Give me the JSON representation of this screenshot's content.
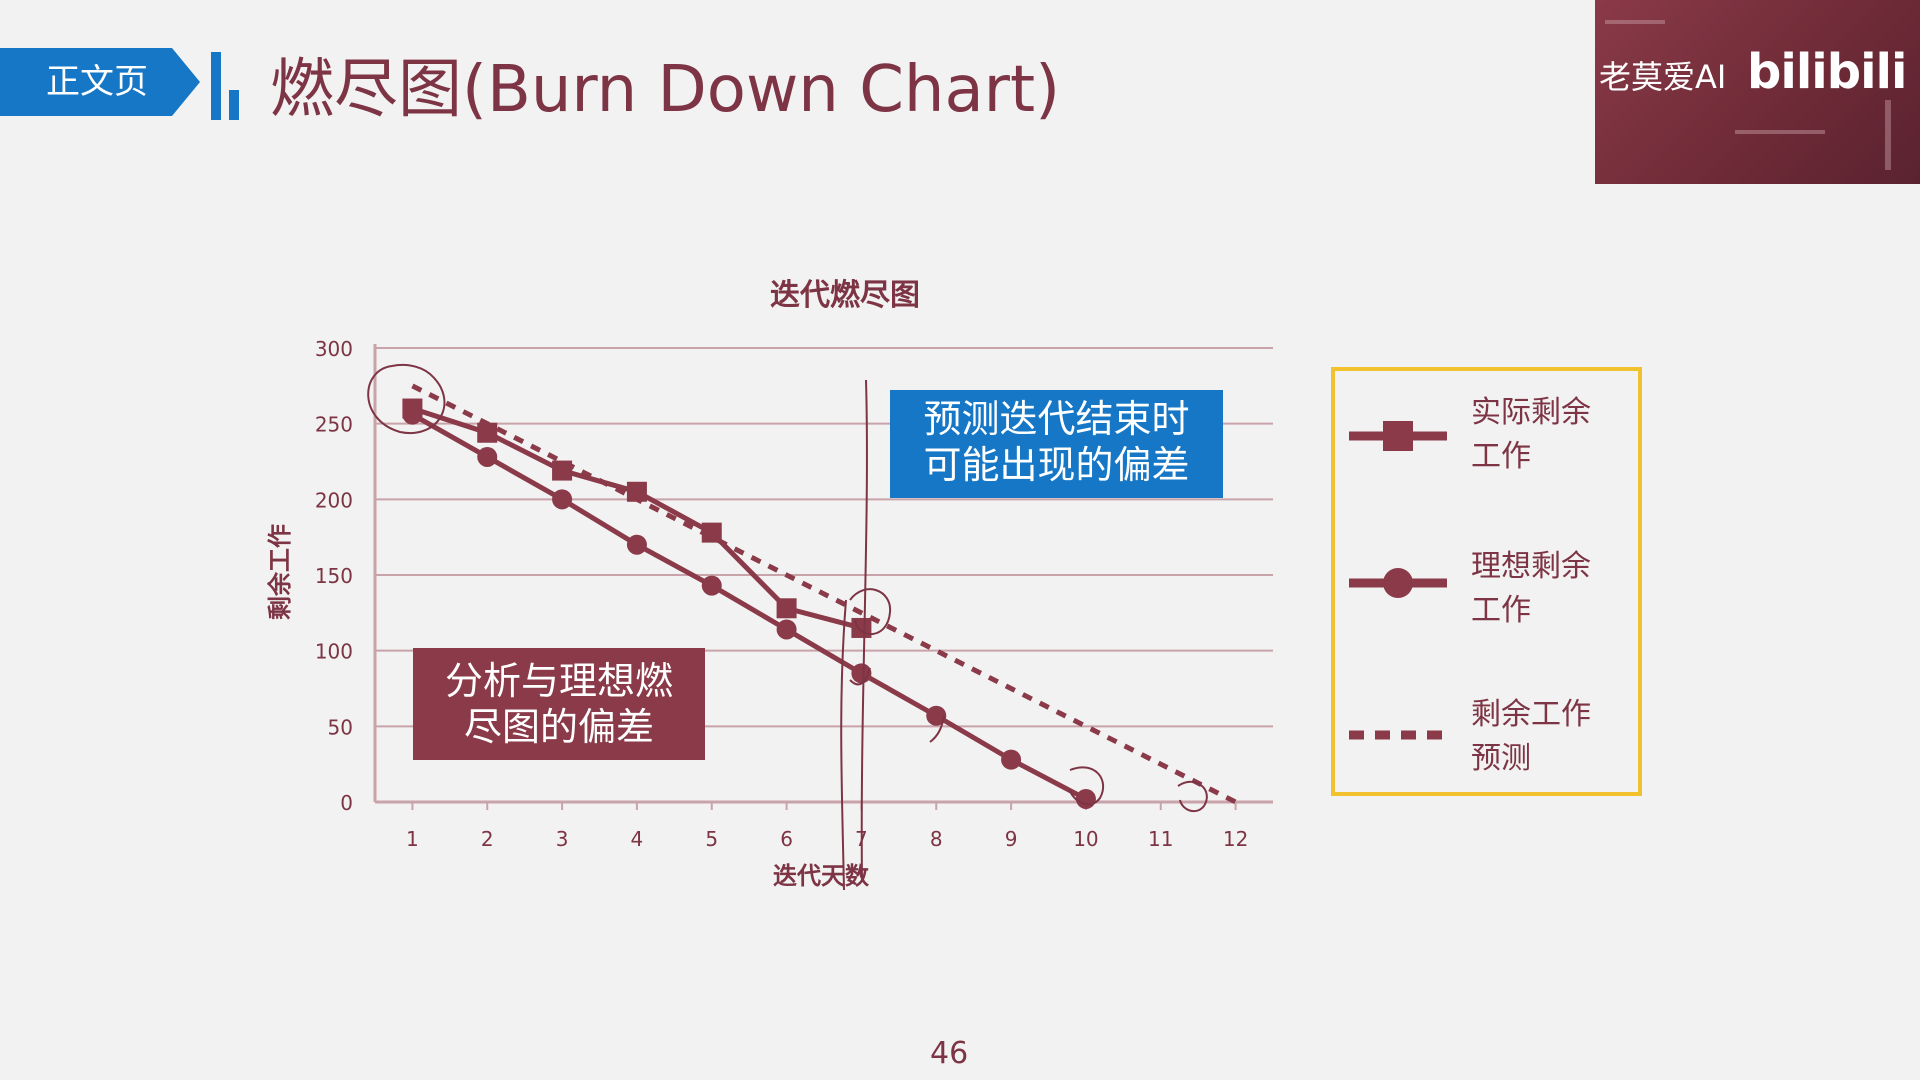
{
  "header": {
    "section_tag": "正文页",
    "title": "燃尽图(Burn Down Chart)"
  },
  "webcam": {
    "overlay_text": "老莫爱AI",
    "logo_text": "bilibili"
  },
  "callouts": {
    "forecast_line1": "预测迭代结束时",
    "forecast_line2": "可能出现的偏差",
    "analysis_line1": "分析与理想燃",
    "analysis_line2": "尽图的偏差"
  },
  "legend": {
    "actual_line1": "实际剩余",
    "actual_line2": "工作",
    "ideal_line1": "理想剩余",
    "ideal_line2": "工作",
    "forecast_line1": "剩余工作",
    "forecast_line2": "预测"
  },
  "page_number": "46",
  "colors": {
    "accent_blue": "#1677c7",
    "chart_maroon": "#8a3a48",
    "legend_border": "#f2c12e"
  },
  "chart_data": {
    "type": "line",
    "title": "迭代燃尽图",
    "xlabel": "迭代天数",
    "ylabel": "剩余工作",
    "x_ticks": [
      1,
      2,
      3,
      4,
      5,
      6,
      7,
      8,
      9,
      10,
      11,
      12
    ],
    "y_ticks": [
      0,
      50,
      100,
      150,
      200,
      250,
      300
    ],
    "xlim": [
      0.5,
      12.5
    ],
    "ylim": [
      0,
      300
    ],
    "grid": true,
    "legend_position": "right",
    "series": [
      {
        "name": "实际剩余工作",
        "marker": "square",
        "style": "solid",
        "x": [
          1,
          2,
          3,
          4,
          5,
          6,
          7
        ],
        "y": [
          260,
          244,
          219,
          205,
          178,
          128,
          115
        ]
      },
      {
        "name": "理想剩余工作",
        "marker": "circle",
        "style": "solid",
        "x": [
          1,
          2,
          3,
          4,
          5,
          6,
          7,
          8,
          9,
          10
        ],
        "y": [
          256,
          228,
          200,
          170,
          143,
          114,
          85,
          57,
          28,
          2
        ]
      },
      {
        "name": "剩余工作预测",
        "marker": "none",
        "style": "dashed",
        "x": [
          1,
          12
        ],
        "y": [
          275,
          0
        ]
      }
    ]
  }
}
